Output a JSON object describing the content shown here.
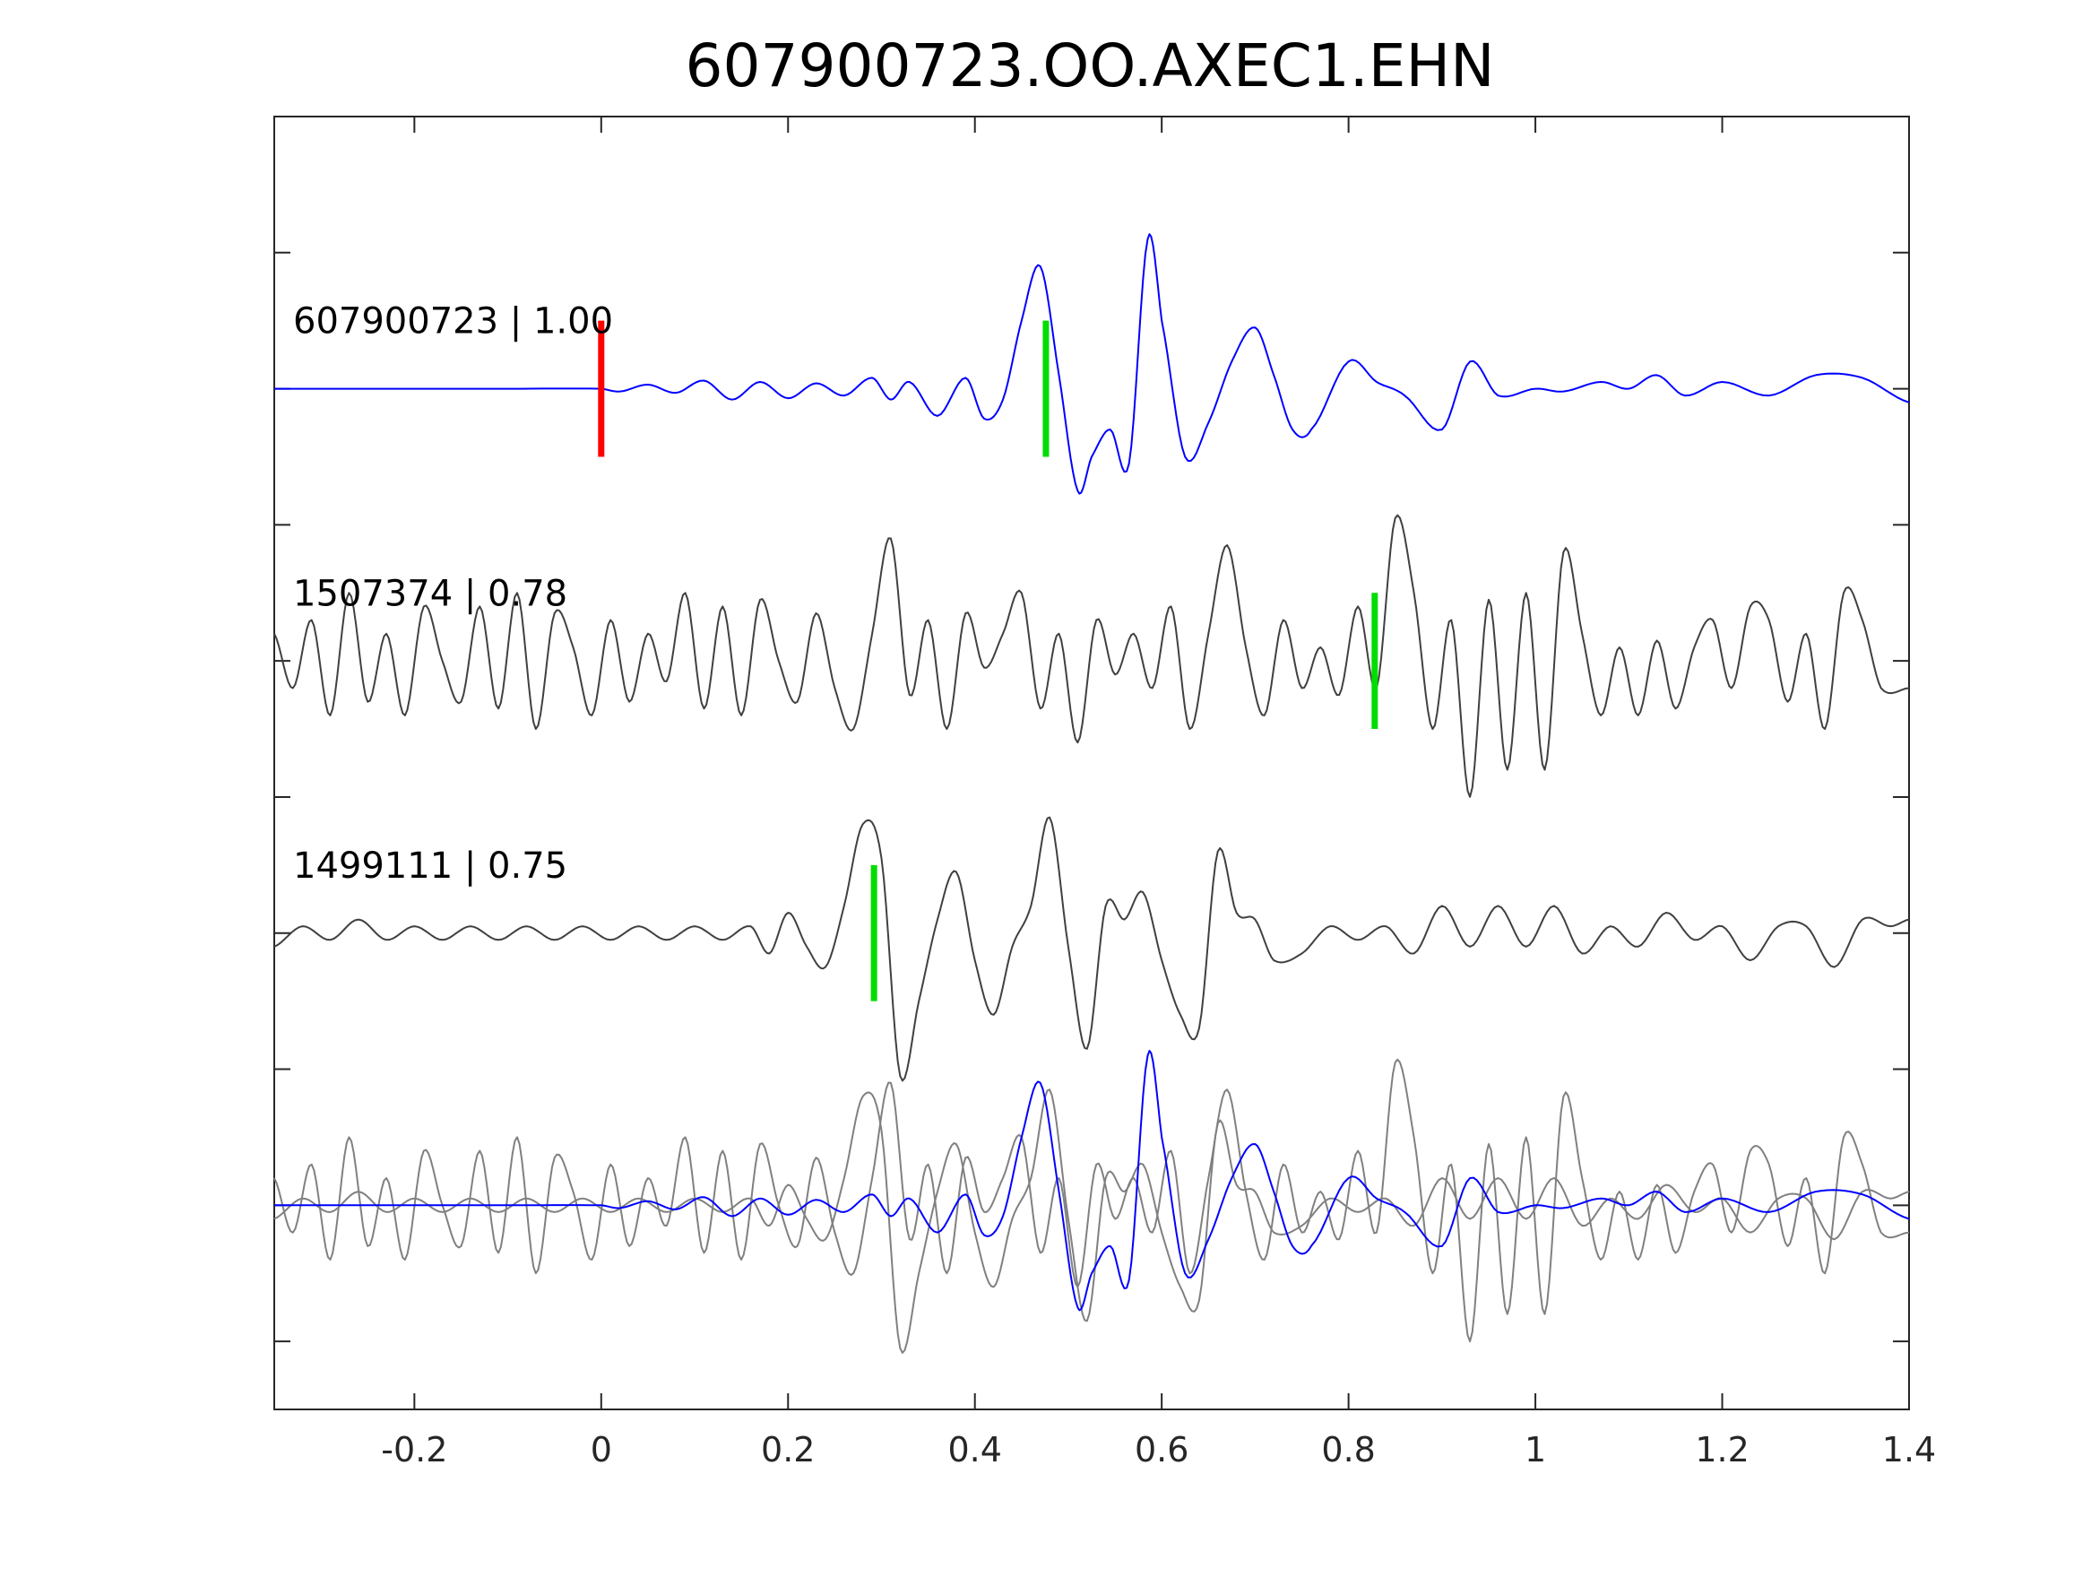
{
  "chart_data": {
    "type": "line",
    "title": "607900723.OO.AXEC1.EHN",
    "xlabel": "",
    "ylabel": "",
    "xlim": [
      -0.35,
      1.4
    ],
    "ylim": [
      -4.5,
      5
    ],
    "grid": false,
    "x_ticks": [
      -0.2,
      0,
      0.2,
      0.4,
      0.6,
      0.8,
      1,
      1.2,
      1.4
    ],
    "x_tick_labels": [
      "-0.2",
      "0",
      "0.2",
      "0.4",
      "0.6",
      "0.8",
      "1",
      "1.2",
      "1.4"
    ],
    "y_ticks": [
      -4,
      -3,
      -2,
      -1,
      0,
      1,
      2,
      3,
      4
    ],
    "colors": {
      "template": "#0000ff",
      "match": "#404040",
      "overlay": "#808080",
      "origin_marker": "#ff0000",
      "pick_marker": "#00dd00",
      "axes": "#262626"
    },
    "series": [
      {
        "label": "607900723 | 1.00",
        "offset": 3,
        "color": "#0000ff",
        "origin_time": 0,
        "pick_time": 0.476,
        "anchors": [
          [
            -0.35,
            0
          ],
          [
            -0.3,
            0
          ],
          [
            -0.2,
            0
          ],
          [
            -0.1,
            0
          ],
          [
            0,
            0
          ],
          [
            0.02,
            -0.02
          ],
          [
            0.05,
            0.03
          ],
          [
            0.08,
            -0.03
          ],
          [
            0.11,
            0.06
          ],
          [
            0.14,
            -0.08
          ],
          [
            0.17,
            0.05
          ],
          [
            0.2,
            -0.07
          ],
          [
            0.23,
            0.04
          ],
          [
            0.26,
            -0.05
          ],
          [
            0.29,
            0.08
          ],
          [
            0.31,
            -0.08
          ],
          [
            0.33,
            0.05
          ],
          [
            0.36,
            -0.2
          ],
          [
            0.39,
            0.08
          ],
          [
            0.41,
            -0.22
          ],
          [
            0.43,
            -0.08
          ],
          [
            0.45,
            0.5
          ],
          [
            0.47,
            0.9
          ],
          [
            0.49,
            0.1
          ],
          [
            0.51,
            -0.75
          ],
          [
            0.525,
            -0.5
          ],
          [
            0.545,
            -0.3
          ],
          [
            0.565,
            -0.55
          ],
          [
            0.585,
            1.1
          ],
          [
            0.6,
            0.5
          ],
          [
            0.625,
            -0.5
          ],
          [
            0.65,
            -0.25
          ],
          [
            0.675,
            0.2
          ],
          [
            0.7,
            0.45
          ],
          [
            0.72,
            0.1
          ],
          [
            0.74,
            -0.3
          ],
          [
            0.76,
            -0.3
          ],
          [
            0.8,
            0.2
          ],
          [
            0.83,
            0.05
          ],
          [
            0.86,
            -0.05
          ],
          [
            0.9,
            -0.3
          ],
          [
            0.93,
            0.2
          ],
          [
            0.96,
            -0.05
          ],
          [
            1.0,
            0.0
          ],
          [
            1.03,
            -0.02
          ],
          [
            1.07,
            0.05
          ],
          [
            1.1,
            0.0
          ],
          [
            1.13,
            0.1
          ],
          [
            1.16,
            -0.05
          ],
          [
            1.2,
            0.05
          ],
          [
            1.25,
            -0.05
          ],
          [
            1.3,
            0.1
          ],
          [
            1.35,
            0.08
          ],
          [
            1.4,
            -0.1
          ]
        ]
      },
      {
        "label": "1507374 | 0.78",
        "offset": 1,
        "color": "#404040",
        "pick_time": 0.828,
        "anchors": [
          [
            -0.35,
            0.2
          ],
          [
            -0.33,
            -0.2
          ],
          [
            -0.31,
            0.3
          ],
          [
            -0.29,
            -0.4
          ],
          [
            -0.27,
            0.5
          ],
          [
            -0.25,
            -0.3
          ],
          [
            -0.23,
            0.2
          ],
          [
            -0.21,
            -0.4
          ],
          [
            -0.19,
            0.4
          ],
          [
            -0.17,
            0.0
          ],
          [
            -0.15,
            -0.3
          ],
          [
            -0.13,
            0.4
          ],
          [
            -0.11,
            -0.35
          ],
          [
            -0.09,
            0.5
          ],
          [
            -0.07,
            -0.5
          ],
          [
            -0.05,
            0.35
          ],
          [
            -0.03,
            0.1
          ],
          [
            -0.01,
            -0.4
          ],
          [
            0.01,
            0.3
          ],
          [
            0.03,
            -0.3
          ],
          [
            0.05,
            0.2
          ],
          [
            0.07,
            -0.15
          ],
          [
            0.09,
            0.5
          ],
          [
            0.11,
            -0.35
          ],
          [
            0.13,
            0.4
          ],
          [
            0.15,
            -0.4
          ],
          [
            0.17,
            0.45
          ],
          [
            0.19,
            0.0
          ],
          [
            0.21,
            -0.3
          ],
          [
            0.23,
            0.35
          ],
          [
            0.25,
            -0.2
          ],
          [
            0.27,
            -0.5
          ],
          [
            0.29,
            0.2
          ],
          [
            0.31,
            0.9
          ],
          [
            0.33,
            -0.25
          ],
          [
            0.35,
            0.3
          ],
          [
            0.37,
            -0.5
          ],
          [
            0.39,
            0.35
          ],
          [
            0.41,
            -0.05
          ],
          [
            0.43,
            0.2
          ],
          [
            0.45,
            0.5
          ],
          [
            0.47,
            -0.35
          ],
          [
            0.49,
            0.2
          ],
          [
            0.51,
            -0.6
          ],
          [
            0.53,
            0.3
          ],
          [
            0.55,
            -0.1
          ],
          [
            0.57,
            0.2
          ],
          [
            0.59,
            -0.2
          ],
          [
            0.61,
            0.4
          ],
          [
            0.63,
            -0.5
          ],
          [
            0.65,
            0.2
          ],
          [
            0.67,
            0.85
          ],
          [
            0.69,
            0.1
          ],
          [
            0.71,
            -0.4
          ],
          [
            0.73,
            0.3
          ],
          [
            0.75,
            -0.2
          ],
          [
            0.77,
            0.1
          ],
          [
            0.79,
            -0.25
          ],
          [
            0.81,
            0.4
          ],
          [
            0.83,
            -0.2
          ],
          [
            0.85,
            1.05
          ],
          [
            0.87,
            0.5
          ],
          [
            0.89,
            -0.5
          ],
          [
            0.91,
            0.3
          ],
          [
            0.93,
            -1.0
          ],
          [
            0.95,
            0.45
          ],
          [
            0.97,
            -0.8
          ],
          [
            0.99,
            0.5
          ],
          [
            1.01,
            -0.8
          ],
          [
            1.03,
            0.8
          ],
          [
            1.05,
            0.2
          ],
          [
            1.07,
            -0.4
          ],
          [
            1.09,
            0.1
          ],
          [
            1.11,
            -0.4
          ],
          [
            1.13,
            0.15
          ],
          [
            1.15,
            -0.35
          ],
          [
            1.17,
            0.1
          ],
          [
            1.19,
            0.3
          ],
          [
            1.21,
            -0.2
          ],
          [
            1.23,
            0.4
          ],
          [
            1.25,
            0.3
          ],
          [
            1.27,
            -0.3
          ],
          [
            1.29,
            0.2
          ],
          [
            1.31,
            -0.5
          ],
          [
            1.33,
            0.5
          ],
          [
            1.35,
            0.3
          ],
          [
            1.37,
            -0.2
          ],
          [
            1.4,
            -0.2
          ]
        ]
      },
      {
        "label": "1499111 | 0.75",
        "offset": -1,
        "color": "#404040",
        "pick_time": 0.292,
        "anchors": [
          [
            -0.35,
            -0.1
          ],
          [
            -0.32,
            0.05
          ],
          [
            -0.29,
            -0.05
          ],
          [
            -0.26,
            0.1
          ],
          [
            -0.23,
            -0.05
          ],
          [
            -0.2,
            0.05
          ],
          [
            -0.17,
            -0.05
          ],
          [
            -0.14,
            0.05
          ],
          [
            -0.11,
            -0.05
          ],
          [
            -0.08,
            0.05
          ],
          [
            -0.05,
            -0.05
          ],
          [
            -0.02,
            0.05
          ],
          [
            0.01,
            -0.05
          ],
          [
            0.04,
            0.05
          ],
          [
            0.07,
            -0.05
          ],
          [
            0.1,
            0.05
          ],
          [
            0.13,
            -0.05
          ],
          [
            0.16,
            0.05
          ],
          [
            0.18,
            -0.15
          ],
          [
            0.2,
            0.15
          ],
          [
            0.22,
            -0.1
          ],
          [
            0.24,
            -0.25
          ],
          [
            0.26,
            0.2
          ],
          [
            0.28,
            0.8
          ],
          [
            0.3,
            0.55
          ],
          [
            0.32,
            -1.05
          ],
          [
            0.34,
            -0.5
          ],
          [
            0.36,
            0.1
          ],
          [
            0.38,
            0.45
          ],
          [
            0.4,
            -0.2
          ],
          [
            0.42,
            -0.6
          ],
          [
            0.44,
            -0.1
          ],
          [
            0.46,
            0.2
          ],
          [
            0.48,
            0.85
          ],
          [
            0.5,
            -0.1
          ],
          [
            0.52,
            -0.85
          ],
          [
            0.54,
            0.2
          ],
          [
            0.56,
            0.1
          ],
          [
            0.58,
            0.3
          ],
          [
            0.6,
            -0.2
          ],
          [
            0.62,
            -0.6
          ],
          [
            0.64,
            -0.7
          ],
          [
            0.66,
            0.6
          ],
          [
            0.68,
            0.15
          ],
          [
            0.7,
            0.1
          ],
          [
            0.72,
            -0.2
          ],
          [
            0.75,
            -0.15
          ],
          [
            0.78,
            0.05
          ],
          [
            0.81,
            -0.05
          ],
          [
            0.84,
            0.05
          ],
          [
            0.87,
            -0.15
          ],
          [
            0.9,
            0.2
          ],
          [
            0.93,
            -0.1
          ],
          [
            0.96,
            0.2
          ],
          [
            0.99,
            -0.1
          ],
          [
            1.02,
            0.2
          ],
          [
            1.05,
            -0.15
          ],
          [
            1.08,
            0.05
          ],
          [
            1.11,
            -0.1
          ],
          [
            1.14,
            0.15
          ],
          [
            1.17,
            -0.05
          ],
          [
            1.2,
            0.05
          ],
          [
            1.23,
            -0.2
          ],
          [
            1.26,
            0.05
          ],
          [
            1.29,
            0.05
          ],
          [
            1.32,
            -0.25
          ],
          [
            1.35,
            0.1
          ],
          [
            1.38,
            0.05
          ],
          [
            1.4,
            0.1
          ]
        ]
      },
      {
        "label": "",
        "offset": -3,
        "overlay": true,
        "components": [
          0,
          1,
          2
        ]
      }
    ]
  }
}
